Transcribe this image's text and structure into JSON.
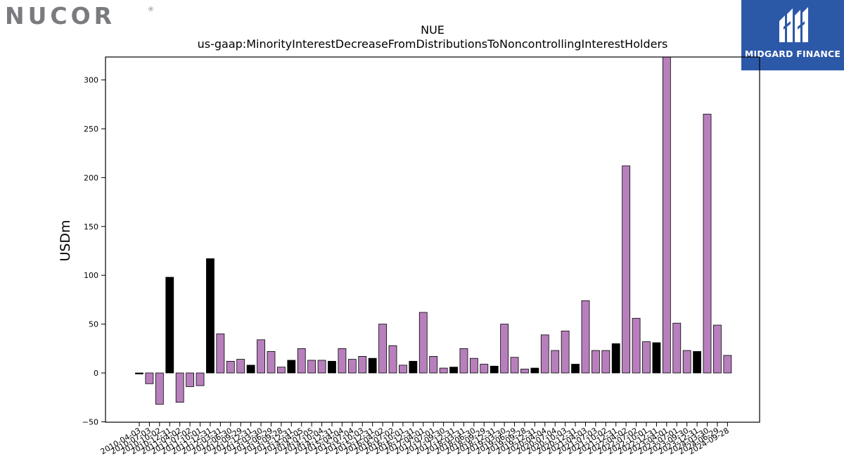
{
  "logos": {
    "left": "NUCOR",
    "left_mark": "®",
    "right": "MIDGARD FINANCE"
  },
  "colors": {
    "highlight": "#b87fbd",
    "dark": "#000000",
    "nucor_gray": "#7a7b7f",
    "midgard_blue": "#2c58a8"
  },
  "chart_data": {
    "type": "bar",
    "title": "NUE",
    "subtitle": "us-gaap:MinorityInterestDecreaseFromDistributionsToNoncontrollingInterestHolders",
    "xlabel": "",
    "ylabel": "USDm",
    "ylim": [
      -50,
      325
    ],
    "yticks": [
      -50,
      0,
      50,
      100,
      150,
      200,
      250,
      300
    ],
    "grid": false,
    "legend": "none",
    "categories": [
      "2010-04-03",
      "2010-07-03",
      "2010-10-02",
      "2010-12-31",
      "2011-04-02",
      "2011-07-02",
      "2011-10-01",
      "2011-12-31",
      "2012-03-31",
      "2012-06-30",
      "2012-09-29",
      "2012-12-31",
      "2013-03-30",
      "2013-06-29",
      "2013-09-28",
      "2013-12-31",
      "2014-04-05",
      "2014-07-05",
      "2014-10-04",
      "2014-12-31",
      "2015-04-04",
      "2015-07-04",
      "2015-10-03",
      "2015-12-31",
      "2016-04-02",
      "2016-07-02",
      "2016-10-01",
      "2016-12-31",
      "2017-04-01",
      "2017-07-01",
      "2017-09-30",
      "2017-12-31",
      "2018-03-31",
      "2018-06-30",
      "2018-09-29",
      "2018-12-31",
      "2019-03-30",
      "2019-06-29",
      "2019-09-28",
      "2019-12-31",
      "2020-04-04",
      "2020-07-04",
      "2020-10-03",
      "2020-12-31",
      "2021-04-03",
      "2021-07-03",
      "2021-10-02",
      "2021-12-31",
      "2022-04-02",
      "2022-07-02",
      "2022-10-01",
      "2022-12-31",
      "2023-04-01",
      "2023-07-01",
      "2023-09-30",
      "2023-12-31",
      "2024-03-30",
      "2024-06-29",
      "2024-09-28"
    ],
    "values": [
      -1,
      -11,
      -32,
      98,
      -30,
      -14,
      -13,
      117,
      40,
      12,
      14,
      8,
      34,
      22,
      6,
      13,
      25,
      13,
      13,
      12,
      25,
      14,
      17,
      15,
      50,
      28,
      8,
      12,
      62,
      17,
      5,
      6,
      25,
      15,
      9,
      7,
      50,
      16,
      4,
      5,
      39,
      23,
      43,
      9,
      74,
      23,
      23,
      30,
      212,
      56,
      32,
      31,
      325,
      51,
      23,
      22,
      265,
      49,
      18
    ],
    "bar_colors": [
      "dark",
      "highlight",
      "highlight",
      "dark",
      "highlight",
      "highlight",
      "highlight",
      "dark",
      "highlight",
      "highlight",
      "highlight",
      "dark",
      "highlight",
      "highlight",
      "highlight",
      "dark",
      "highlight",
      "highlight",
      "highlight",
      "dark",
      "highlight",
      "highlight",
      "highlight",
      "dark",
      "highlight",
      "highlight",
      "highlight",
      "dark",
      "highlight",
      "highlight",
      "highlight",
      "dark",
      "highlight",
      "highlight",
      "highlight",
      "dark",
      "highlight",
      "highlight",
      "highlight",
      "dark",
      "highlight",
      "highlight",
      "highlight",
      "dark",
      "highlight",
      "highlight",
      "highlight",
      "dark",
      "highlight",
      "highlight",
      "highlight",
      "dark",
      "highlight",
      "highlight",
      "highlight",
      "dark",
      "highlight",
      "highlight",
      "highlight"
    ]
  }
}
